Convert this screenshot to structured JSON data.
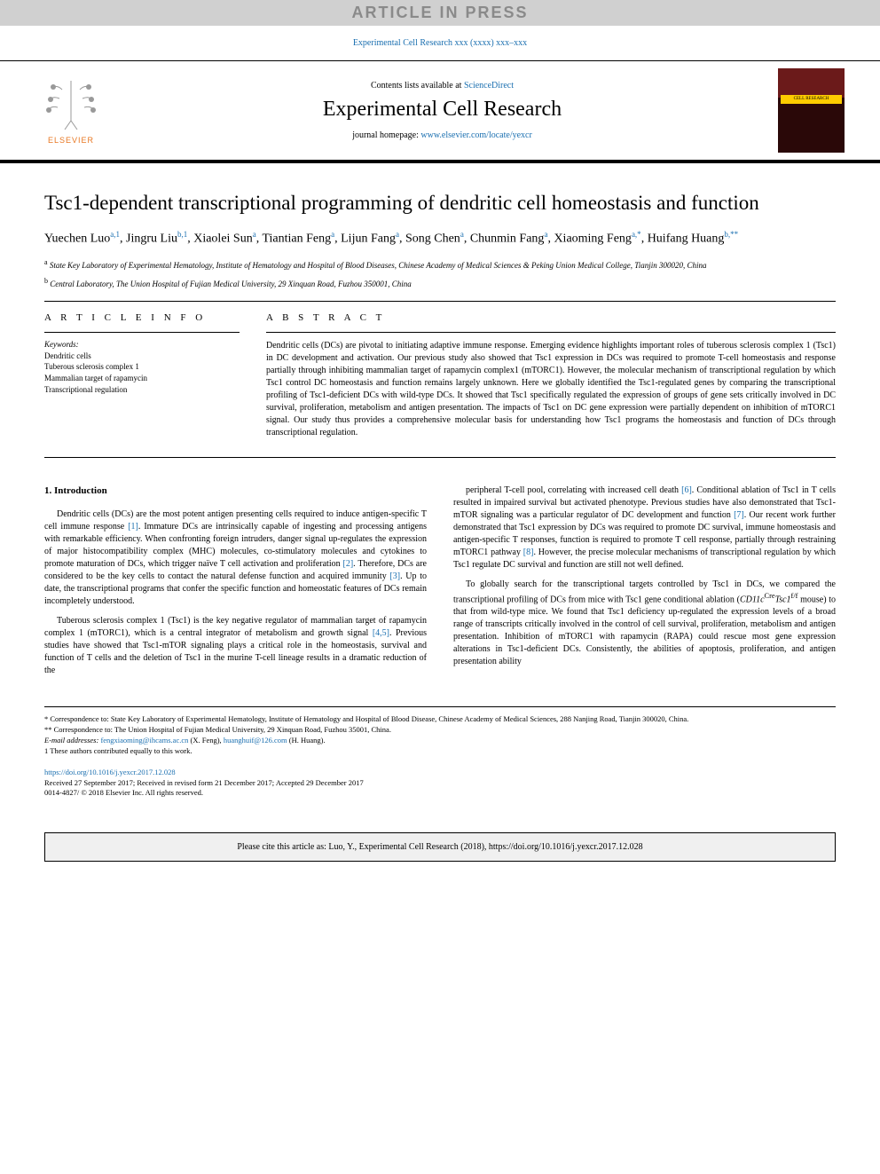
{
  "banner": {
    "text": "ARTICLE IN PRESS"
  },
  "journalRef": {
    "prefix": "Experimental Cell Research xxx (xxxx) xxx–xxx",
    "url": "Experimental Cell Research xxx (xxxx) xxx–xxx"
  },
  "header": {
    "contentsPrefix": "Contents lists available at ",
    "contentsLink": "ScienceDirect",
    "journalTitle": "Experimental Cell Research",
    "homepagePrefix": "journal homepage: ",
    "homepageUrl": "www.elsevier.com/locate/yexcr",
    "elsevierLabel": "ELSEVIER",
    "coverBand": "CELL RESEARCH"
  },
  "article": {
    "title": "Tsc1-dependent transcriptional programming of dendritic cell homeostasis and function",
    "authorsHtml": "Yuechen Luo<sup>a,1</sup>, Jingru Liu<sup>b,1</sup>, Xiaolei Sun<sup>a</sup>, Tiantian Feng<sup>a</sup>, Lijun Fang<sup>a</sup>, Song Chen<sup>a</sup>, Chunmin Fang<sup>a</sup>, Xiaoming Feng<sup>a,*</sup>, Huifang Huang<sup>b,**</sup>",
    "affiliations": {
      "a": "State Key Laboratory of Experimental Hematology, Institute of Hematology and Hospital of Blood Diseases, Chinese Academy of Medical Sciences & Peking Union Medical College, Tianjin 300020, China",
      "b": "Central Laboratory, The Union Hospital of Fujian Medical University, 29 Xinquan Road, Fuzhou 350001, China"
    }
  },
  "info": {
    "heading": "A R T I C L E   I N F O",
    "keywordsLabel": "Keywords:",
    "keywords": [
      "Dendritic cells",
      "Tuberous sclerosis complex 1",
      "Mammalian target of rapamycin",
      "Transcriptional regulation"
    ]
  },
  "abstract": {
    "heading": "A B S T R A C T",
    "text": "Dendritic cells (DCs) are pivotal to initiating adaptive immune response. Emerging evidence highlights important roles of tuberous sclerosis complex 1 (Tsc1) in DC development and activation. Our previous study also showed that Tsc1 expression in DCs was required to promote T-cell homeostasis and response partially through inhibiting mammalian target of rapamycin complex1 (mTORC1). However, the molecular mechanism of transcriptional regulation by which Tsc1 control DC homeostasis and function remains largely unknown. Here we globally identified the Tsc1-regulated genes by comparing the transcriptional profiling of Tsc1-deficient DCs with wild-type DCs. It showed that Tsc1 specifically regulated the expression of groups of gene sets critically involved in DC survival, proliferation, metabolism and antigen presentation. The impacts of Tsc1 on DC gene expression were partially dependent on inhibition of mTORC1 signal. Our study thus provides a comprehensive molecular basis for understanding how Tsc1 programs the homeostasis and function of DCs through transcriptional regulation."
  },
  "body": {
    "heading": "1. Introduction",
    "leftParas": [
      "Dendritic cells (DCs) are the most potent antigen presenting cells required to induce antigen-specific T cell immune response [1]. Immature DCs are intrinsically capable of ingesting and processing antigens with remarkable efficiency. When confronting foreign intruders, danger signal up-regulates the expression of major histocompatibility complex (MHC) molecules, co-stimulatory molecules and cytokines to promote maturation of DCs, which trigger naïve T cell activation and proliferation [2]. Therefore, DCs are considered to be the key cells to contact the natural defense function and acquired immunity [3]. Up to date, the transcriptional programs that confer the specific function and homeostatic features of DCs remain incompletely understood.",
      "Tuberous sclerosis complex 1 (Tsc1) is the key negative regulator of mammalian target of rapamycin complex 1 (mTORC1), which is a central integrator of metabolism and growth signal [4,5]. Previous studies have showed that Tsc1-mTOR signaling plays a critical role in the homeostasis, survival and function of T cells and the deletion of Tsc1 in the murine T-cell lineage results in a dramatic reduction of the"
    ],
    "rightParas": [
      "peripheral T-cell pool, correlating with increased cell death [6]. Conditional ablation of Tsc1 in T cells resulted in impaired survival but activated phenotype. Previous studies have also demonstrated that Tsc1-mTOR signaling was a particular regulator of DC development and function [7]. Our recent work further demonstrated that Tsc1 expression by DCs was required to promote DC survival, immune homeostasis and antigen-specific T responses, function is required to promote T cell response, partially through restraining mTORC1 pathway [8]. However, the precise molecular mechanisms of transcriptional regulation by which Tsc1 regulate DC survival and function are still not well defined.",
      "To globally search for the transcriptional targets controlled by Tsc1 in DCs, we compared the transcriptional profiling of DCs from mice with Tsc1 gene conditional ablation (CD11cCreTsc1f/f mouse) to that from wild-type mice. We found that Tsc1 deficiency up-regulated the expression levels of a broad range of transcripts critically involved in the control of cell survival, proliferation, metabolism and antigen presentation. Inhibition of mTORC1 with rapamycin (RAPA) could rescue most gene expression alterations in Tsc1-deficient DCs. Consistently, the abilities of apoptosis, proliferation, and antigen presentation ability"
    ]
  },
  "footnotes": {
    "corr1": "* Correspondence to: State Key Laboratory of Experimental Hematology, Institute of Hematology and Hospital of Blood Disease, Chinese Academy of Medical Sciences, 288 Nanjing Road, Tianjin 300020, China.",
    "corr2": "** Correspondence to: The Union Hospital of Fujian Medical University, 29 Xinquan Road, Fuzhou 35001, China.",
    "emailLabel": "E-mail addresses: ",
    "email1": "fengxiaoming@ihcams.ac.cn",
    "email1Name": " (X. Feng), ",
    "email2": "huanghuif@126.com",
    "email2Name": " (H. Huang).",
    "equal": "1 These authors contributed equally to this work."
  },
  "doi": {
    "url": "https://doi.org/10.1016/j.yexcr.2017.12.028",
    "received": "Received 27 September 2017; Received in revised form 21 December 2017; Accepted 29 December 2017",
    "copyright": "0014-4827/ © 2018 Elsevier Inc. All rights reserved."
  },
  "citeBox": "Please cite this article as: Luo, Y., Experimental Cell Research (2018), https://doi.org/10.1016/j.yexcr.2017.12.028",
  "refLinks": [
    "[1]",
    "[2]",
    "[3]",
    "[4,5]",
    "[6]",
    "[7]",
    "[8]"
  ],
  "colors": {
    "bannerBg": "#d0d0d0",
    "bannerText": "#8a8a8a",
    "link": "#1a6fb0",
    "elsevierOrange": "#e87722",
    "coverTop": "#6b1a1a",
    "coverBottom": "#2a0808",
    "coverBand": "#ffcc00",
    "citeBg": "#f0f0f0"
  }
}
